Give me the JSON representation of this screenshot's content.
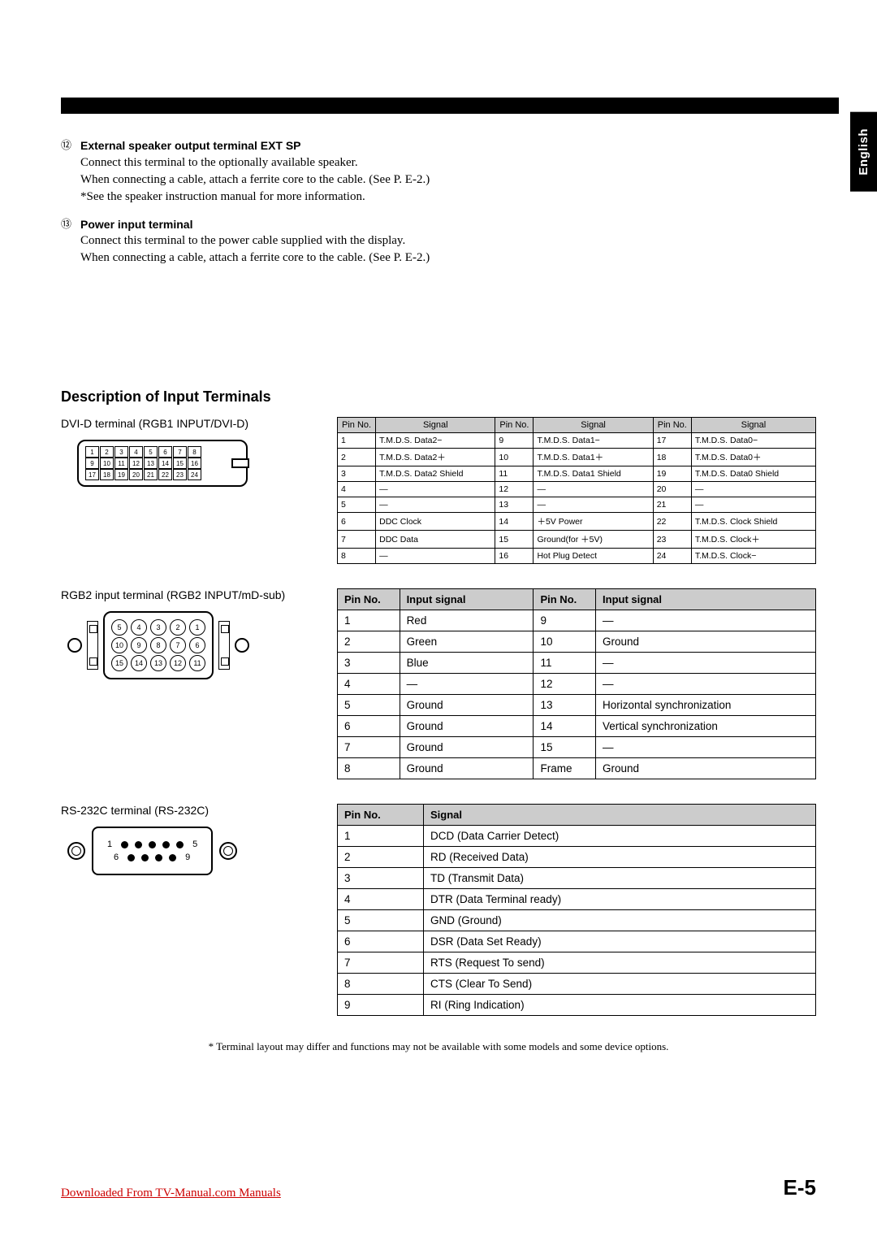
{
  "language_tab": "English",
  "items": [
    {
      "marker": "⑫",
      "title": "External speaker output terminal EXT SP",
      "lines": [
        "Connect this terminal to the optionally available speaker.",
        "When connecting a cable, attach a ferrite core to the cable. (See P. E-2.)",
        "*See the speaker instruction manual for more information."
      ]
    },
    {
      "marker": "⑬",
      "title": "Power input terminal",
      "lines": [
        "Connect this terminal to the power cable supplied with the display.",
        "When connecting a cable, attach a ferrite core to the cable. (See P. E-2.)"
      ]
    }
  ],
  "section_heading": "Description of Input Terminals",
  "dvi": {
    "label": "DVI-D terminal  (RGB1 INPUT/DVI-D)",
    "pins_r1": [
      "1",
      "2",
      "3",
      "4",
      "5",
      "6",
      "7",
      "8"
    ],
    "pins_r2": [
      "9",
      "10",
      "11",
      "12",
      "13",
      "14",
      "15",
      "16"
    ],
    "pins_r3": [
      "17",
      "18",
      "19",
      "20",
      "21",
      "22",
      "23",
      "24"
    ],
    "headers": [
      "Pin No.",
      "Signal",
      "Pin No.",
      "Signal",
      "Pin No.",
      "Signal"
    ],
    "rows": [
      [
        "1",
        "T.M.D.S. Data2−",
        "9",
        "T.M.D.S. Data1−",
        "17",
        "T.M.D.S. Data0−"
      ],
      [
        "2",
        "T.M.D.S. Data2＋",
        "10",
        "T.M.D.S. Data1＋",
        "18",
        "T.M.D.S. Data0＋"
      ],
      [
        "3",
        "T.M.D.S. Data2 Shield",
        "11",
        "T.M.D.S. Data1 Shield",
        "19",
        "T.M.D.S. Data0 Shield"
      ],
      [
        "4",
        "—",
        "12",
        "—",
        "20",
        "—"
      ],
      [
        "5",
        "—",
        "13",
        "—",
        "21",
        "—"
      ],
      [
        "6",
        "DDC Clock",
        "14",
        "＋5V Power",
        "22",
        "T.M.D.S. Clock Shield"
      ],
      [
        "7",
        "DDC Data",
        "15",
        "Ground(for ＋5V)",
        "23",
        "T.M.D.S. Clock＋"
      ],
      [
        "8",
        "—",
        "16",
        "Hot Plug Detect",
        "24",
        "T.M.D.S. Clock−"
      ]
    ]
  },
  "rgb2": {
    "label": "RGB2 input terminal (RGB2 INPUT/mD-sub)",
    "pins_r1": [
      "5",
      "4",
      "3",
      "2",
      "1"
    ],
    "pins_r2": [
      "10",
      "9",
      "8",
      "7",
      "6"
    ],
    "pins_r3": [
      "15",
      "14",
      "13",
      "12",
      "11"
    ],
    "headers": [
      "Pin No.",
      "Input signal",
      "Pin No.",
      "Input signal"
    ],
    "rows": [
      [
        "1",
        "Red",
        "9",
        "—"
      ],
      [
        "2",
        "Green",
        "10",
        "Ground"
      ],
      [
        "3",
        "Blue",
        "11",
        "—"
      ],
      [
        "4",
        "—",
        "12",
        "—"
      ],
      [
        "5",
        "Ground",
        "13",
        "Horizontal synchronization"
      ],
      [
        "6",
        "Ground",
        "14",
        "Vertical synchronization"
      ],
      [
        "7",
        "Ground",
        "15",
        "—"
      ],
      [
        "8",
        "Ground",
        "Frame",
        "Ground"
      ]
    ]
  },
  "rs232": {
    "label": "RS-232C terminal (RS-232C)",
    "top_left": "1",
    "top_right": "5",
    "bot_left": "6",
    "bot_right": "9",
    "headers": [
      "Pin No.",
      "Signal"
    ],
    "rows": [
      [
        "1",
        "DCD (Data Carrier Detect)"
      ],
      [
        "2",
        "RD (Received Data)"
      ],
      [
        "3",
        "TD (Transmit Data)"
      ],
      [
        "4",
        "DTR (Data Terminal ready)"
      ],
      [
        "5",
        "GND (Ground)"
      ],
      [
        "6",
        "DSR (Data Set Ready)"
      ],
      [
        "7",
        "RTS (Request To send)"
      ],
      [
        "8",
        "CTS (Clear To Send)"
      ],
      [
        "9",
        "RI (Ring Indication)"
      ]
    ]
  },
  "footnote": "* Terminal layout may differ and functions may not be available with some models and some device options.",
  "download_link": "Downloaded From TV-Manual.com Manuals",
  "page_number": "E-5"
}
